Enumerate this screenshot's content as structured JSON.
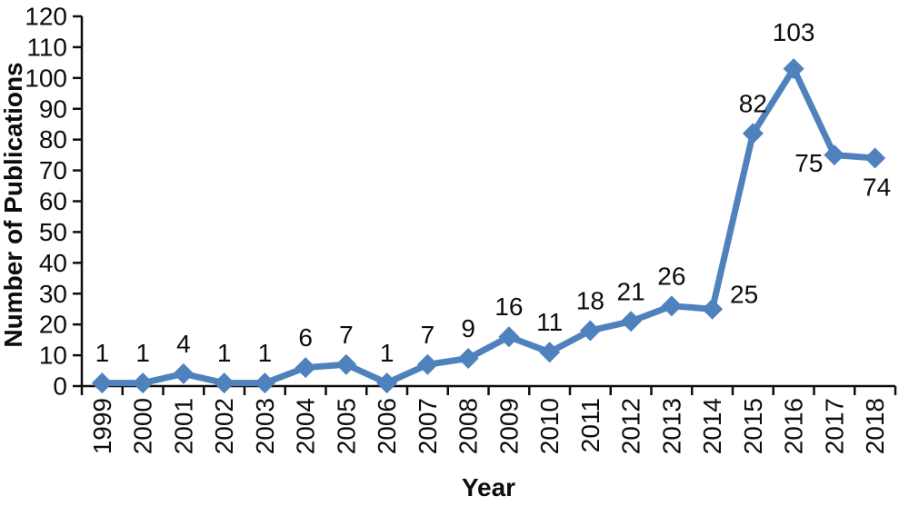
{
  "figure": {
    "background": "#ffffff",
    "axis_color": "#0d0d0d",
    "text_color": "#0d0d0d"
  },
  "chart_data": {
    "type": "line",
    "title": "",
    "xlabel": "Year",
    "ylabel": "Number of Publications",
    "categories": [
      "1999",
      "2000",
      "2001",
      "2002",
      "2003",
      "2004",
      "2005",
      "2006",
      "2007",
      "2008",
      "2009",
      "2010",
      "2011",
      "2012",
      "2013",
      "2014",
      "2015",
      "2016",
      "2017",
      "2018"
    ],
    "series": [
      {
        "name": "Number of Publications",
        "values": [
          1,
          1,
          4,
          1,
          1,
          6,
          7,
          1,
          7,
          9,
          16,
          11,
          18,
          21,
          26,
          25,
          82,
          103,
          75,
          74
        ],
        "color": "#4F81BD",
        "marker": "diamond"
      }
    ],
    "data_labels": [
      "1",
      "1",
      "4",
      "1",
      "1",
      "6",
      "7",
      "1",
      "7",
      "9",
      "16",
      "11",
      "18",
      "21",
      "26",
      "25",
      "82",
      "103",
      "75",
      "74"
    ],
    "ylim": [
      0,
      120
    ],
    "ytick_step": 10,
    "ytick_labels": [
      "0",
      "10",
      "20",
      "30",
      "40",
      "50",
      "60",
      "70",
      "80",
      "90",
      "100",
      "110",
      "120"
    ],
    "grid": false,
    "legend": "none",
    "label_offsets": {
      "15": [
        35,
        -16
      ],
      "17": [
        0,
        -40
      ],
      "18": [
        -28,
        9
      ],
      "19": [
        2,
        32
      ]
    },
    "default_label_offset": [
      0,
      -33
    ]
  }
}
